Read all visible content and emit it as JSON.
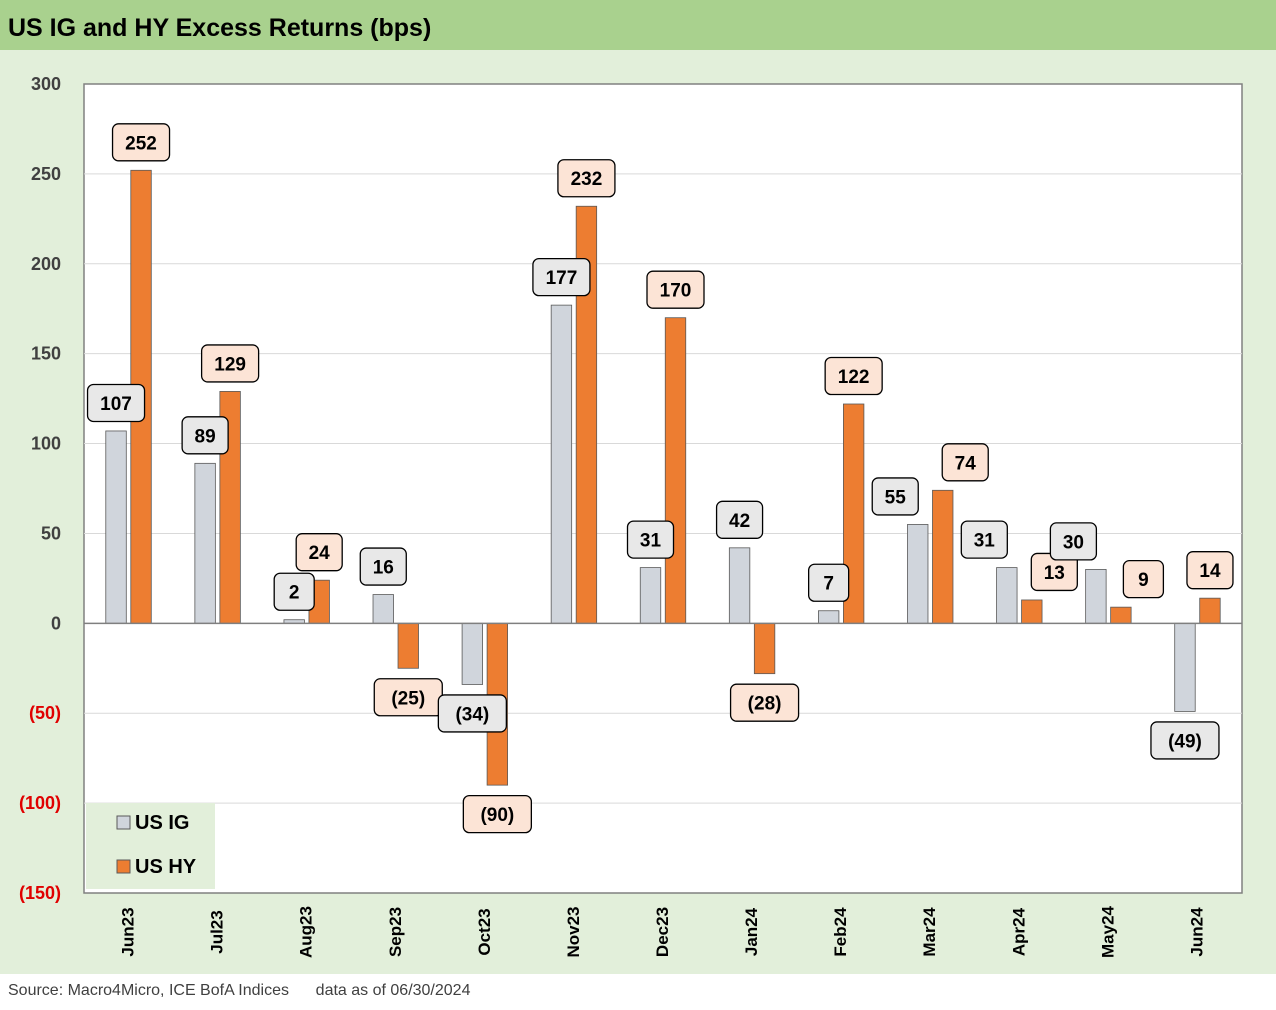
{
  "source": "Source: Macro4Micro, ICE BofA Indices",
  "data_note": "data as of 06/30/2024",
  "colors": {
    "title_bg": "#a9d18e",
    "chart_bg": "#e2efda",
    "plot_bg": "#ffffff",
    "ig_bar": "#d0d5dc",
    "hy_bar": "#ed7d31",
    "ig_label_bg": "#e8e8e8",
    "hy_label_bg": "#fce4d6",
    "negative_tick": "#e00000"
  },
  "chart_data": {
    "type": "bar",
    "title": "US IG and HY Excess Returns (bps)",
    "xlabel": "",
    "ylabel": "",
    "ylim": [
      -150,
      300
    ],
    "yticks": [
      300,
      250,
      200,
      150,
      100,
      50,
      0,
      -50,
      -100,
      -150
    ],
    "ytick_labels": [
      "300",
      "250",
      "200",
      "150",
      "100",
      "50",
      "0",
      "(50)",
      "(100)",
      "(150)"
    ],
    "grid": true,
    "legend_position": "bottom-left",
    "categories": [
      "Jun23",
      "Jul23",
      "Aug23",
      "Sep23",
      "Oct23",
      "Nov23",
      "Dec23",
      "Jan24",
      "Feb24",
      "Mar24",
      "Apr24",
      "May24",
      "Jun24"
    ],
    "series": [
      {
        "name": "US IG",
        "values": [
          107,
          89,
          2,
          16,
          -34,
          177,
          31,
          42,
          7,
          55,
          31,
          30,
          -49
        ],
        "labels": [
          "107",
          "89",
          "2",
          "16",
          "(34)",
          "177",
          "31",
          "42",
          "7",
          "55",
          "31",
          "30",
          "(49)"
        ]
      },
      {
        "name": "US HY",
        "values": [
          252,
          129,
          24,
          -25,
          -90,
          232,
          170,
          -28,
          122,
          74,
          13,
          9,
          14
        ],
        "labels": [
          "252",
          "129",
          "24",
          "(25)",
          "(90)",
          "232",
          "170",
          "(28)",
          "122",
          "74",
          "13",
          "9",
          "14"
        ]
      }
    ]
  }
}
